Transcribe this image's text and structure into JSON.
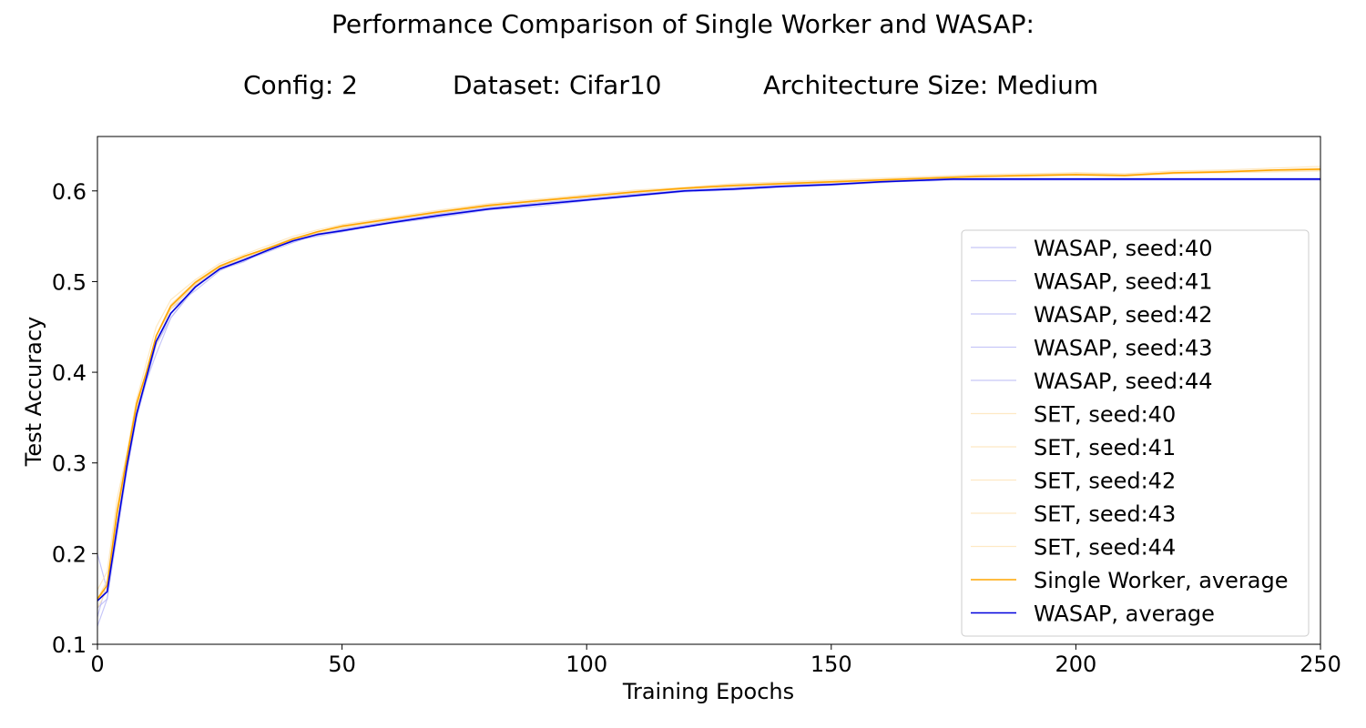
{
  "title": "Performance Comparison of Single Worker and WASAP:",
  "subtitle": {
    "config": "Config: 2",
    "dataset": "Dataset: Cifar10",
    "architecture": "Architecture Size: Medium"
  },
  "colors": {
    "wasap_seed": "#b4b4f5",
    "set_seed": "#fde2b0",
    "single_worker_average": "#ffa500",
    "wasap_average": "#0000dd"
  },
  "chart_data": {
    "type": "line",
    "xlabel": "Training Epochs",
    "ylabel": "Test Accuracy",
    "xlim": [
      0,
      250
    ],
    "ylim": [
      0.1,
      0.66
    ],
    "xticks": [
      0,
      50,
      100,
      150,
      200,
      250
    ],
    "yticks": [
      0.1,
      0.2,
      0.3,
      0.4,
      0.5,
      0.6
    ],
    "ytick_labels": [
      "0.1",
      "0.2",
      "0.3",
      "0.4",
      "0.5",
      "0.6"
    ],
    "grid": false,
    "legend_position": "center-right",
    "x": [
      0,
      2,
      4,
      6,
      8,
      10,
      12,
      15,
      20,
      25,
      30,
      35,
      40,
      45,
      50,
      60,
      70,
      80,
      90,
      100,
      110,
      120,
      130,
      140,
      150,
      160,
      170,
      175,
      180,
      190,
      200,
      210,
      220,
      230,
      240,
      250
    ],
    "series": [
      {
        "name": "WASAP, seed:40",
        "role": "seed_wasap",
        "values": [
          0.13,
          0.17,
          0.23,
          0.3,
          0.35,
          0.39,
          0.42,
          0.46,
          0.495,
          0.515,
          0.525,
          0.535,
          0.545,
          0.55,
          0.555,
          0.565,
          0.572,
          0.58,
          0.585,
          0.59,
          0.595,
          0.6,
          0.602,
          0.605,
          0.607,
          0.61,
          0.612,
          0.613,
          0.613,
          0.613,
          0.613,
          0.613,
          0.613,
          0.613,
          0.613,
          0.613
        ]
      },
      {
        "name": "WASAP, seed:41",
        "role": "seed_wasap",
        "values": [
          0.15,
          0.16,
          0.22,
          0.3,
          0.36,
          0.4,
          0.44,
          0.47,
          0.49,
          0.512,
          0.524,
          0.534,
          0.546,
          0.553,
          0.558,
          0.566,
          0.575,
          0.582,
          0.586,
          0.592,
          0.597,
          0.6,
          0.604,
          0.606,
          0.609,
          0.611,
          0.613,
          0.614,
          0.614,
          0.614,
          0.614,
          0.614,
          0.614,
          0.614,
          0.614,
          0.614
        ]
      },
      {
        "name": "WASAP, seed:42",
        "role": "seed_wasap",
        "values": [
          0.14,
          0.15,
          0.23,
          0.29,
          0.35,
          0.39,
          0.43,
          0.465,
          0.495,
          0.513,
          0.522,
          0.536,
          0.544,
          0.552,
          0.556,
          0.564,
          0.571,
          0.579,
          0.583,
          0.589,
          0.594,
          0.599,
          0.601,
          0.604,
          0.606,
          0.609,
          0.612,
          0.612,
          0.612,
          0.612,
          0.612,
          0.612,
          0.612,
          0.612,
          0.612,
          0.612
        ]
      },
      {
        "name": "WASAP, seed:43",
        "role": "seed_wasap",
        "values": [
          0.2,
          0.16,
          0.24,
          0.3,
          0.36,
          0.39,
          0.44,
          0.47,
          0.497,
          0.516,
          0.526,
          0.537,
          0.548,
          0.551,
          0.557,
          0.567,
          0.574,
          0.581,
          0.587,
          0.591,
          0.596,
          0.601,
          0.603,
          0.607,
          0.608,
          0.61,
          0.613,
          0.613,
          0.613,
          0.613,
          0.613,
          0.613,
          0.613,
          0.613,
          0.613,
          0.613
        ]
      },
      {
        "name": "WASAP, seed:44",
        "role": "seed_wasap",
        "values": [
          0.12,
          0.15,
          0.22,
          0.29,
          0.35,
          0.4,
          0.43,
          0.46,
          0.493,
          0.514,
          0.523,
          0.533,
          0.543,
          0.552,
          0.555,
          0.565,
          0.573,
          0.58,
          0.585,
          0.59,
          0.595,
          0.6,
          0.602,
          0.605,
          0.607,
          0.61,
          0.611,
          0.612,
          0.612,
          0.612,
          0.612,
          0.612,
          0.612,
          0.612,
          0.612,
          0.612
        ]
      },
      {
        "name": "SET, seed:40",
        "role": "seed_set",
        "values": [
          0.15,
          0.17,
          0.25,
          0.31,
          0.37,
          0.4,
          0.44,
          0.475,
          0.5,
          0.518,
          0.528,
          0.538,
          0.548,
          0.555,
          0.562,
          0.57,
          0.578,
          0.585,
          0.59,
          0.595,
          0.6,
          0.603,
          0.607,
          0.609,
          0.611,
          0.613,
          0.615,
          0.616,
          0.616,
          0.618,
          0.619,
          0.617,
          0.62,
          0.622,
          0.623,
          0.625
        ]
      },
      {
        "name": "SET, seed:41",
        "role": "seed_set",
        "values": [
          0.14,
          0.16,
          0.24,
          0.3,
          0.36,
          0.4,
          0.44,
          0.47,
          0.497,
          0.516,
          0.527,
          0.536,
          0.546,
          0.554,
          0.561,
          0.569,
          0.576,
          0.583,
          0.589,
          0.594,
          0.598,
          0.602,
          0.606,
          0.608,
          0.61,
          0.612,
          0.614,
          0.615,
          0.617,
          0.616,
          0.62,
          0.618,
          0.621,
          0.621,
          0.622,
          0.624
        ]
      },
      {
        "name": "SET, seed:42",
        "role": "seed_set",
        "values": [
          0.16,
          0.18,
          0.26,
          0.31,
          0.37,
          0.41,
          0.45,
          0.48,
          0.502,
          0.52,
          0.53,
          0.54,
          0.55,
          0.557,
          0.563,
          0.571,
          0.579,
          0.586,
          0.591,
          0.596,
          0.601,
          0.604,
          0.608,
          0.61,
          0.612,
          0.614,
          0.616,
          0.617,
          0.618,
          0.619,
          0.62,
          0.619,
          0.622,
          0.623,
          0.625,
          0.627
        ]
      },
      {
        "name": "SET, seed:43",
        "role": "seed_set",
        "values": [
          0.15,
          0.17,
          0.25,
          0.3,
          0.36,
          0.4,
          0.44,
          0.472,
          0.498,
          0.517,
          0.527,
          0.537,
          0.547,
          0.554,
          0.56,
          0.568,
          0.577,
          0.584,
          0.589,
          0.594,
          0.599,
          0.603,
          0.606,
          0.608,
          0.61,
          0.612,
          0.614,
          0.615,
          0.616,
          0.617,
          0.618,
          0.617,
          0.619,
          0.621,
          0.622,
          0.623
        ]
      },
      {
        "name": "SET, seed:44",
        "role": "seed_set",
        "values": [
          0.15,
          0.16,
          0.24,
          0.3,
          0.36,
          0.4,
          0.43,
          0.47,
          0.496,
          0.515,
          0.526,
          0.535,
          0.546,
          0.553,
          0.559,
          0.568,
          0.576,
          0.583,
          0.588,
          0.593,
          0.598,
          0.602,
          0.605,
          0.607,
          0.609,
          0.611,
          0.613,
          0.614,
          0.615,
          0.616,
          0.617,
          0.616,
          0.619,
          0.62,
          0.621,
          0.622
        ]
      },
      {
        "name": "Single Worker, average",
        "role": "avg_single",
        "values": [
          0.15,
          0.165,
          0.245,
          0.305,
          0.365,
          0.4,
          0.44,
          0.473,
          0.499,
          0.517,
          0.528,
          0.537,
          0.547,
          0.555,
          0.561,
          0.569,
          0.577,
          0.584,
          0.589,
          0.594,
          0.599,
          0.603,
          0.606,
          0.608,
          0.61,
          0.612,
          0.614,
          0.615,
          0.616,
          0.617,
          0.618,
          0.617,
          0.62,
          0.621,
          0.623,
          0.624
        ]
      },
      {
        "name": "WASAP, average",
        "role": "avg_wasap",
        "values": [
          0.148,
          0.158,
          0.228,
          0.296,
          0.354,
          0.394,
          0.434,
          0.465,
          0.494,
          0.514,
          0.524,
          0.535,
          0.545,
          0.552,
          0.556,
          0.565,
          0.573,
          0.58,
          0.585,
          0.59,
          0.595,
          0.6,
          0.602,
          0.605,
          0.607,
          0.61,
          0.612,
          0.613,
          0.613,
          0.613,
          0.613,
          0.613,
          0.613,
          0.613,
          0.613,
          0.613
        ]
      }
    ]
  }
}
